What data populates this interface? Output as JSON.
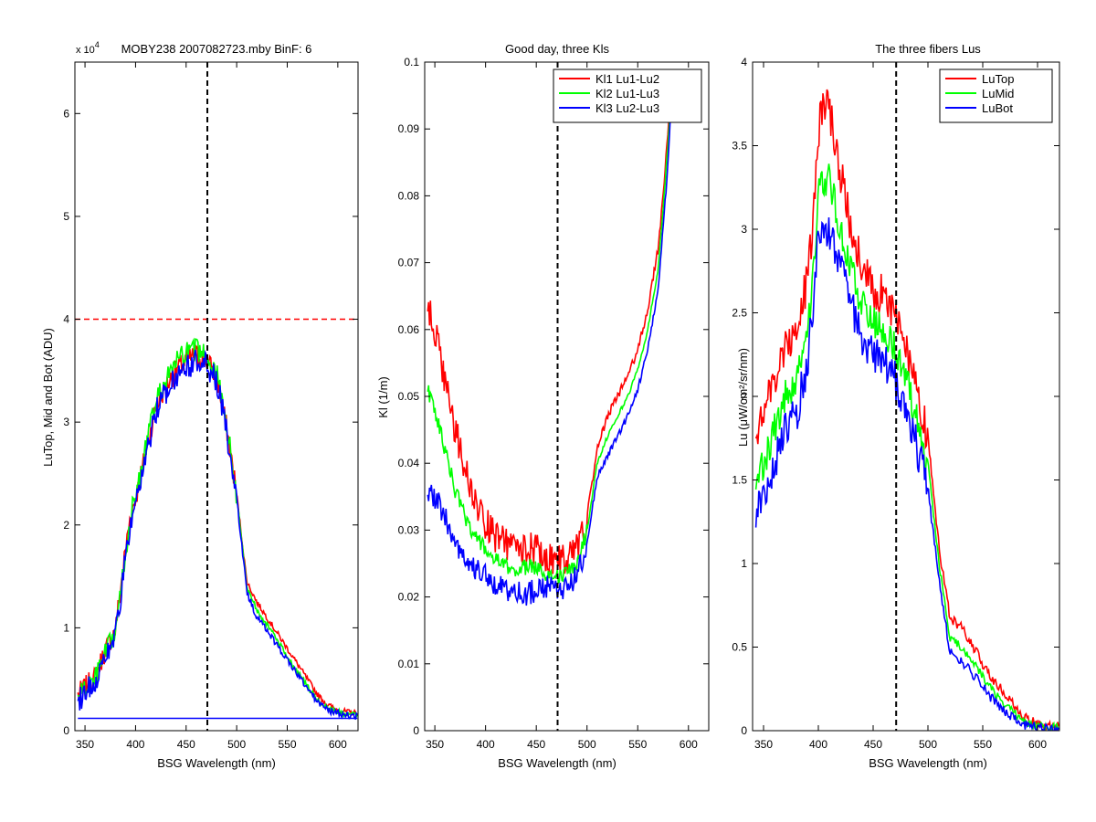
{
  "chart_data": [
    {
      "type": "line",
      "title": "MOBY238  2007082723.mby BinF: 6",
      "exponent_label": "x 10",
      "exponent_power": "4",
      "xlabel": "BSG Wavelength (nm)",
      "ylabel": "LuTop, Mid and Bot (ADU)",
      "xlim": [
        340,
        620
      ],
      "ylim": [
        0,
        65000
      ],
      "x_ticks": [
        350,
        400,
        450,
        500,
        550,
        600
      ],
      "y_ticks": [
        0,
        10000,
        20000,
        30000,
        40000,
        50000,
        60000
      ],
      "y_tick_labels": [
        "0",
        "1",
        "2",
        "3",
        "4",
        "5",
        "6"
      ],
      "grid": false,
      "reference_lines": [
        {
          "orientation": "horizontal",
          "value": 40000,
          "color": "#ff0000",
          "style": "dashed"
        },
        {
          "orientation": "vertical",
          "value": 471,
          "color": "#000000",
          "style": "dashed"
        }
      ],
      "series": [
        {
          "color": "#ff0000",
          "x": [
            343,
            360,
            370,
            380,
            390,
            395,
            400,
            410,
            420,
            430,
            440,
            450,
            460,
            470,
            480,
            490,
            500,
            510,
            520,
            530,
            540,
            550,
            560,
            570,
            580,
            590,
            600,
            610,
            620
          ],
          "values": [
            3500,
            5200,
            7800,
            9800,
            17500,
            21000,
            22500,
            27000,
            31500,
            33500,
            35000,
            36000,
            36500,
            36000,
            34500,
            29500,
            23000,
            14500,
            12500,
            11000,
            9500,
            8000,
            6500,
            5000,
            3500,
            2500,
            2000,
            1800,
            1700
          ],
          "noise": 1100
        },
        {
          "color": "#00ff00",
          "x": [
            343,
            360,
            370,
            380,
            390,
            395,
            400,
            410,
            420,
            430,
            440,
            450,
            460,
            470,
            480,
            490,
            500,
            510,
            520,
            530,
            540,
            550,
            560,
            570,
            580,
            590,
            600,
            610,
            620
          ],
          "values": [
            3400,
            5000,
            7500,
            9500,
            17000,
            20800,
            22800,
            27500,
            32000,
            34000,
            35800,
            36700,
            37000,
            36500,
            34800,
            29800,
            22800,
            14000,
            11800,
            10300,
            8800,
            7200,
            5800,
            4300,
            3000,
            2200,
            1800,
            1600,
            1500
          ],
          "noise": 1100
        },
        {
          "color": "#0000ff",
          "x": [
            343,
            360,
            370,
            380,
            390,
            395,
            400,
            410,
            420,
            430,
            440,
            450,
            460,
            470,
            480,
            490,
            500,
            510,
            520,
            530,
            540,
            550,
            560,
            570,
            580,
            590,
            600,
            610,
            620
          ],
          "values": [
            3000,
            4800,
            7200,
            9200,
            16500,
            20000,
            21500,
            26500,
            31000,
            33000,
            34500,
            35500,
            35800,
            35500,
            34000,
            29000,
            22500,
            13500,
            11000,
            9800,
            8300,
            6900,
            5500,
            4100,
            2800,
            2000,
            1700,
            1500,
            1400
          ],
          "noise": 1300
        },
        {
          "color": "#0000ff",
          "x": [
            343,
            620
          ],
          "values": [
            1200,
            1200
          ],
          "noise": 0
        }
      ]
    },
    {
      "type": "line",
      "title": "Good day, three Kls",
      "xlabel": "BSG Wavelength (nm)",
      "ylabel": "Kl (1/m)",
      "xlim": [
        340,
        620
      ],
      "ylim": [
        0,
        0.1
      ],
      "x_ticks": [
        350,
        400,
        450,
        500,
        550,
        600
      ],
      "y_ticks": [
        0,
        0.01,
        0.02,
        0.03,
        0.04,
        0.05,
        0.06,
        0.07,
        0.08,
        0.09,
        0.1
      ],
      "y_tick_labels": [
        "0",
        "0.01",
        "0.02",
        "0.03",
        "0.04",
        "0.05",
        "0.06",
        "0.07",
        "0.08",
        "0.09",
        "0.1"
      ],
      "grid": false,
      "legend_position": "top-right",
      "reference_lines": [
        {
          "orientation": "vertical",
          "value": 471,
          "color": "#000000",
          "style": "dashed"
        }
      ],
      "series": [
        {
          "name": "Kl1 Lu1-Lu2",
          "color": "#ff0000",
          "x": [
            343,
            350,
            360,
            370,
            380,
            390,
            400,
            410,
            420,
            430,
            440,
            450,
            460,
            470,
            480,
            490,
            500,
            505,
            510,
            520,
            530,
            540,
            550,
            560,
            570,
            575,
            580,
            585
          ],
          "values": [
            0.063,
            0.06,
            0.052,
            0.045,
            0.039,
            0.034,
            0.031,
            0.029,
            0.028,
            0.027,
            0.0275,
            0.027,
            0.026,
            0.0255,
            0.026,
            0.027,
            0.032,
            0.037,
            0.042,
            0.047,
            0.05,
            0.053,
            0.057,
            0.063,
            0.072,
            0.08,
            0.09,
            0.1
          ],
          "noise": 0.0025
        },
        {
          "name": "Kl2 Lu1-Lu3",
          "color": "#00ff00",
          "x": [
            343,
            350,
            360,
            370,
            380,
            390,
            400,
            410,
            420,
            430,
            440,
            450,
            460,
            470,
            480,
            490,
            500,
            505,
            510,
            520,
            530,
            540,
            550,
            560,
            570,
            575,
            580,
            585
          ],
          "values": [
            0.051,
            0.048,
            0.042,
            0.036,
            0.032,
            0.029,
            0.027,
            0.0255,
            0.0245,
            0.024,
            0.0245,
            0.0245,
            0.0235,
            0.023,
            0.0235,
            0.025,
            0.03,
            0.035,
            0.04,
            0.044,
            0.047,
            0.05,
            0.054,
            0.06,
            0.069,
            0.078,
            0.088,
            0.1
          ],
          "noise": 0.0012
        },
        {
          "name": "Kl3 Lu2-Lu3",
          "color": "#0000ff",
          "x": [
            343,
            350,
            360,
            370,
            380,
            390,
            400,
            410,
            420,
            430,
            440,
            450,
            460,
            470,
            480,
            490,
            500,
            505,
            510,
            520,
            530,
            540,
            550,
            560,
            570,
            575,
            580,
            585
          ],
          "values": [
            0.036,
            0.035,
            0.032,
            0.028,
            0.026,
            0.024,
            0.023,
            0.022,
            0.021,
            0.0205,
            0.0205,
            0.021,
            0.0215,
            0.021,
            0.0215,
            0.023,
            0.028,
            0.033,
            0.038,
            0.041,
            0.044,
            0.047,
            0.051,
            0.057,
            0.066,
            0.075,
            0.085,
            0.1
          ],
          "noise": 0.0018
        }
      ]
    },
    {
      "type": "line",
      "title": "The three fibers Lus",
      "xlabel": "BSG Wavelength (nm)",
      "ylabel": "Lu (μW/cm²/sr/nm)",
      "xlim": [
        340,
        620
      ],
      "ylim": [
        0,
        4
      ],
      "x_ticks": [
        350,
        400,
        450,
        500,
        550,
        600
      ],
      "y_ticks": [
        0,
        0.5,
        1,
        1.5,
        2,
        2.5,
        3,
        3.5,
        4
      ],
      "y_tick_labels": [
        "0",
        "0.5",
        "1",
        "1.5",
        "2",
        "2.5",
        "3",
        "3.5",
        "4"
      ],
      "grid": false,
      "legend_position": "top-right",
      "reference_lines": [
        {
          "orientation": "vertical",
          "value": 471,
          "color": "#000000",
          "style": "dashed"
        }
      ],
      "series": [
        {
          "name": "LuTop",
          "color": "#ff0000",
          "x": [
            343,
            350,
            360,
            370,
            380,
            390,
            395,
            400,
            405,
            410,
            415,
            420,
            430,
            440,
            450,
            460,
            470,
            480,
            490,
            500,
            510,
            520,
            530,
            540,
            550,
            560,
            570,
            580,
            590,
            600,
            610,
            620
          ],
          "values": [
            1.8,
            1.9,
            2.1,
            2.3,
            2.4,
            2.7,
            3.0,
            3.6,
            3.75,
            3.7,
            3.55,
            3.35,
            3.0,
            2.8,
            2.65,
            2.6,
            2.5,
            2.3,
            2.0,
            1.75,
            1.1,
            0.68,
            0.62,
            0.52,
            0.4,
            0.3,
            0.22,
            0.14,
            0.07,
            0.04,
            0.03,
            0.03
          ],
          "noise": 0.12
        },
        {
          "name": "LuMid",
          "color": "#00ff00",
          "x": [
            343,
            350,
            360,
            370,
            380,
            390,
            395,
            400,
            405,
            410,
            415,
            420,
            430,
            440,
            450,
            460,
            470,
            480,
            490,
            500,
            510,
            520,
            530,
            540,
            550,
            560,
            570,
            580,
            590,
            600,
            610,
            620
          ],
          "values": [
            1.5,
            1.6,
            1.8,
            2.0,
            2.1,
            2.4,
            2.7,
            3.2,
            3.3,
            3.3,
            3.15,
            3.0,
            2.75,
            2.55,
            2.45,
            2.4,
            2.3,
            2.1,
            1.85,
            1.6,
            1.0,
            0.56,
            0.5,
            0.42,
            0.32,
            0.23,
            0.16,
            0.1,
            0.05,
            0.03,
            0.02,
            0.02
          ],
          "noise": 0.1
        },
        {
          "name": "LuBot",
          "color": "#0000ff",
          "x": [
            343,
            350,
            360,
            370,
            380,
            390,
            395,
            400,
            405,
            410,
            415,
            420,
            430,
            440,
            450,
            460,
            470,
            480,
            490,
            500,
            510,
            520,
            530,
            540,
            550,
            560,
            570,
            580,
            590,
            600,
            610,
            620
          ],
          "values": [
            1.3,
            1.4,
            1.6,
            1.8,
            1.9,
            2.2,
            2.5,
            2.95,
            3.0,
            3.0,
            2.9,
            2.75,
            2.55,
            2.35,
            2.25,
            2.2,
            2.1,
            1.95,
            1.7,
            1.45,
            0.9,
            0.48,
            0.42,
            0.35,
            0.26,
            0.18,
            0.12,
            0.07,
            0.03,
            0.02,
            0.01,
            0.01
          ],
          "noise": 0.12
        }
      ]
    }
  ]
}
